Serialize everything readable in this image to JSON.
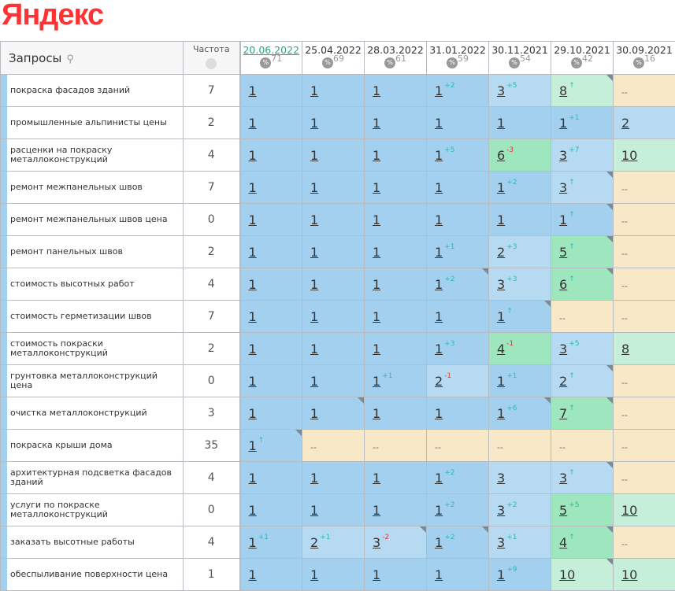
{
  "logo": "Яндекс",
  "header": {
    "queries": "Запросы",
    "frequency": "Частота",
    "search_icon": "search-icon",
    "globe_icon": "globe-icon",
    "percent_icon": "%"
  },
  "dates": [
    {
      "date": "20.06.2022",
      "pct": "71",
      "active": true
    },
    {
      "date": "25.04.2022",
      "pct": "69"
    },
    {
      "date": "28.03.2022",
      "pct": "61"
    },
    {
      "date": "31.01.2022",
      "pct": "59"
    },
    {
      "date": "30.11.2021",
      "pct": "54"
    },
    {
      "date": "29.10.2021",
      "pct": "42"
    },
    {
      "date": "30.09.2021",
      "pct": "16"
    }
  ],
  "colors": {
    "top1": "#a3d0ee",
    "top3": "#b5daf2",
    "top7": "#9ee6bd",
    "top10": "#c5efd8",
    "none": "#f7e9c7",
    "up": "#2bbbb0",
    "down": "#e33333"
  },
  "rows": [
    {
      "q": "покраска фасадов зданий",
      "f": "7",
      "cells": [
        [
          "1"
        ],
        [
          "1"
        ],
        [
          "1"
        ],
        [
          "1",
          "+2"
        ],
        [
          "3",
          "+5"
        ],
        [
          "8",
          "↑",
          0,
          1
        ],
        [
          "--"
        ]
      ]
    },
    {
      "q": "промышленные альпинисты цены",
      "f": "2",
      "cells": [
        [
          "1"
        ],
        [
          "1"
        ],
        [
          "1"
        ],
        [
          "1"
        ],
        [
          "1"
        ],
        [
          "1",
          "+1"
        ],
        [
          "2"
        ]
      ]
    },
    {
      "q": "расценки на покраску металлоконструкций",
      "f": "4",
      "cells": [
        [
          "1"
        ],
        [
          "1"
        ],
        [
          "1"
        ],
        [
          "1",
          "+5"
        ],
        [
          "6",
          "-3",
          1
        ],
        [
          "3",
          "+7"
        ],
        [
          "10"
        ]
      ]
    },
    {
      "q": "ремонт межпанельных швов",
      "f": "7",
      "cells": [
        [
          "1"
        ],
        [
          "1"
        ],
        [
          "1"
        ],
        [
          "1"
        ],
        [
          "1",
          "+2"
        ],
        [
          "3",
          "↑",
          0,
          1
        ],
        [
          "--"
        ]
      ]
    },
    {
      "q": "ремонт межпанельных швов цена",
      "f": "0",
      "cells": [
        [
          "1"
        ],
        [
          "1"
        ],
        [
          "1"
        ],
        [
          "1"
        ],
        [
          "1"
        ],
        [
          "1",
          "↑",
          0,
          1
        ],
        [
          "--"
        ]
      ]
    },
    {
      "q": "ремонт панельных швов",
      "f": "2",
      "cells": [
        [
          "1"
        ],
        [
          "1"
        ],
        [
          "1"
        ],
        [
          "1",
          "+1"
        ],
        [
          "2",
          "+3"
        ],
        [
          "5",
          "↑",
          0,
          1
        ],
        [
          "--"
        ]
      ]
    },
    {
      "q": "стоимость высотных работ",
      "f": "4",
      "cells": [
        [
          "1"
        ],
        [
          "1"
        ],
        [
          "1"
        ],
        [
          "1",
          "+2",
          0,
          1
        ],
        [
          "3",
          "+3"
        ],
        [
          "6",
          "↑",
          0,
          1
        ],
        [
          "--"
        ]
      ]
    },
    {
      "q": "стоимость герметизации швов",
      "f": "7",
      "cells": [
        [
          "1"
        ],
        [
          "1"
        ],
        [
          "1"
        ],
        [
          "1"
        ],
        [
          "1",
          "↑",
          0,
          1
        ],
        [
          "--"
        ],
        [
          "--"
        ]
      ]
    },
    {
      "q": "стоимость покраски металлоконструкций",
      "f": "2",
      "cells": [
        [
          "1"
        ],
        [
          "1"
        ],
        [
          "1"
        ],
        [
          "1",
          "+3"
        ],
        [
          "4",
          "-1",
          1
        ],
        [
          "3",
          "+5"
        ],
        [
          "8"
        ]
      ]
    },
    {
      "q": "грунтовка металлоконструкций цена",
      "f": "0",
      "cells": [
        [
          "1"
        ],
        [
          "1"
        ],
        [
          "1",
          "+1"
        ],
        [
          "2",
          "-1",
          1
        ],
        [
          "1",
          "+1"
        ],
        [
          "2",
          "↑",
          0,
          1
        ],
        [
          "--"
        ]
      ]
    },
    {
      "q": "очистка металлоконструкций",
      "f": "3",
      "cells": [
        [
          "1"
        ],
        [
          "1",
          null,
          0,
          1
        ],
        [
          "1",
          null,
          0,
          0
        ],
        [
          "1",
          null,
          0,
          0
        ],
        [
          "1",
          "+6",
          0,
          1
        ],
        [
          "7",
          "↑",
          0,
          1
        ],
        [
          "--"
        ]
      ]
    },
    {
      "q": "покраска крыши дома",
      "f": "35",
      "cells": [
        [
          "1",
          "↑",
          0,
          1
        ],
        [
          "--"
        ],
        [
          "--"
        ],
        [
          "--"
        ],
        [
          "--"
        ],
        [
          "--"
        ],
        [
          "--"
        ]
      ]
    },
    {
      "q": "архитектурная подсветка фасадов зданий",
      "f": "4",
      "cells": [
        [
          "1"
        ],
        [
          "1"
        ],
        [
          "1"
        ],
        [
          "1",
          "+2"
        ],
        [
          "3"
        ],
        [
          "3",
          "↑",
          0,
          1
        ],
        [
          "--"
        ]
      ]
    },
    {
      "q": "услуги по покраске металлоконструкций",
      "f": "0",
      "cells": [
        [
          "1"
        ],
        [
          "1"
        ],
        [
          "1"
        ],
        [
          "1",
          "+2"
        ],
        [
          "3",
          "+2"
        ],
        [
          "5",
          "+5"
        ],
        [
          "10"
        ]
      ]
    },
    {
      "q": "заказать высотные работы",
      "f": "4",
      "cells": [
        [
          "1",
          "+1"
        ],
        [
          "2",
          "+1"
        ],
        [
          "3",
          "-2",
          1,
          1
        ],
        [
          "1",
          "+2",
          0,
          1
        ],
        [
          "3",
          "+1"
        ],
        [
          "4",
          "↑",
          0,
          1
        ],
        [
          "--"
        ]
      ]
    },
    {
      "q": "обеспыливание поверхности цена",
      "f": "1",
      "cells": [
        [
          "1"
        ],
        [
          "1"
        ],
        [
          "1"
        ],
        [
          "1"
        ],
        [
          "1",
          "+9"
        ],
        [
          "10",
          null,
          0,
          1
        ],
        [
          "10"
        ]
      ]
    }
  ]
}
